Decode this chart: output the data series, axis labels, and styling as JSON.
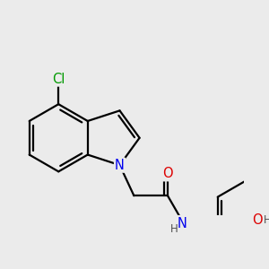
{
  "background_color": "#ebebeb",
  "bond_color": "#000000",
  "bond_width": 1.6,
  "atom_colors": {
    "N": "#0000ee",
    "O": "#dd0000",
    "Cl": "#009900",
    "H": "#505050"
  },
  "font_size_atom": 10.5,
  "font_size_H": 8.5
}
